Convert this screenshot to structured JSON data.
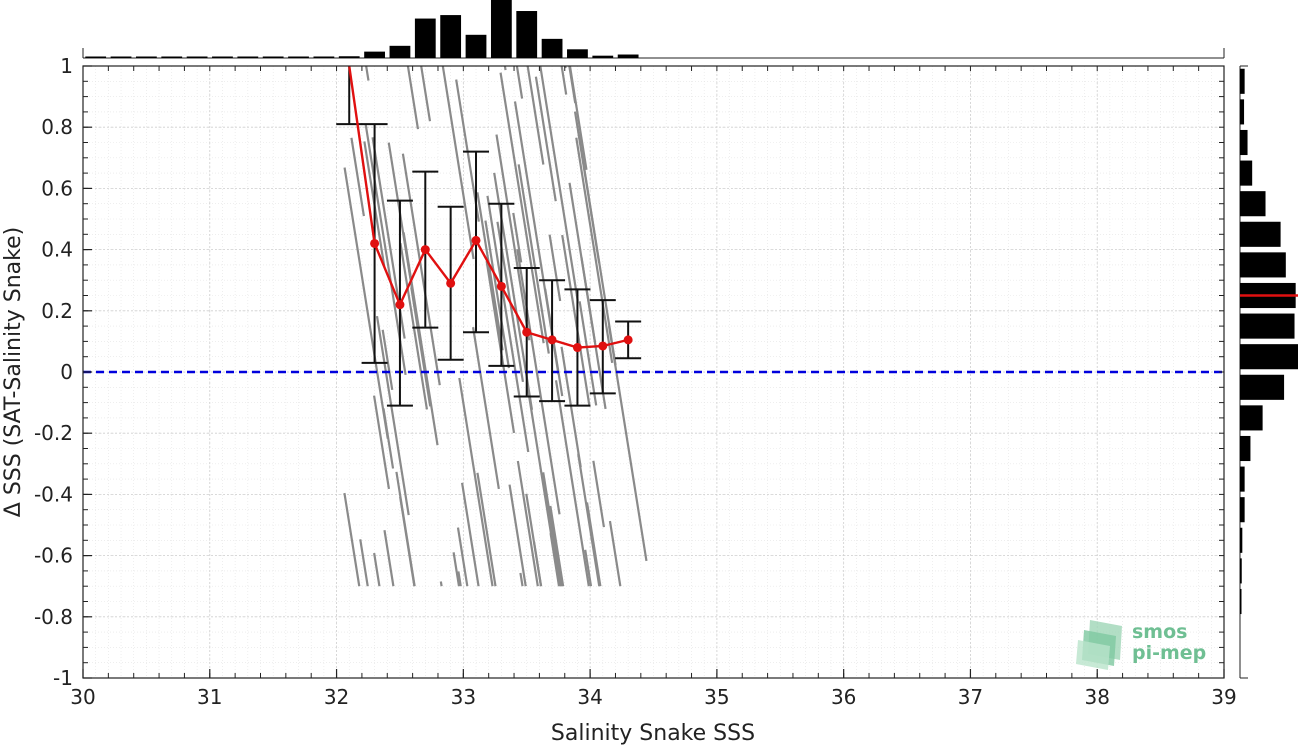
{
  "chart_data": {
    "type": "scatter",
    "xlabel": "Salinity Snake SSS",
    "ylabel": "Δ SSS (SAT-Salinity Snake)",
    "xlim": [
      30,
      39
    ],
    "ylim": [
      -1,
      1
    ],
    "x_ticks": [
      30,
      31,
      32,
      33,
      34,
      35,
      36,
      37,
      38,
      39
    ],
    "y_ticks": [
      -1,
      -0.8,
      -0.6,
      -0.4,
      -0.2,
      0,
      0.2,
      0.4,
      0.6,
      0.8,
      1
    ],
    "y_tick_labels": [
      "-1",
      "-0.8",
      "-0.6",
      "-0.4",
      "-0.2",
      "0",
      "0.2",
      "0.4",
      "0.6",
      "0.8",
      "1"
    ],
    "grid": true,
    "zero_line": {
      "y": 0,
      "color": "#0000dd",
      "style": "dashed"
    },
    "scatter_trace_color": "#808080",
    "mean_series": {
      "color": "#e01010",
      "x": [
        32.1,
        32.3,
        32.5,
        32.7,
        32.9,
        33.1,
        33.3,
        33.5,
        33.7,
        33.9,
        34.1,
        34.3
      ],
      "y": [
        1.0,
        0.42,
        0.22,
        0.4,
        0.29,
        0.43,
        0.28,
        0.13,
        0.105,
        0.08,
        0.085,
        0.105
      ]
    },
    "error_bars": [
      {
        "x": 32.1,
        "low": 0.81,
        "high": 1.0
      },
      {
        "x": 32.3,
        "low": 0.03,
        "high": 0.81
      },
      {
        "x": 32.5,
        "low": -0.11,
        "high": 0.56
      },
      {
        "x": 32.7,
        "low": 0.145,
        "high": 0.655
      },
      {
        "x": 32.9,
        "low": 0.04,
        "high": 0.54
      },
      {
        "x": 33.1,
        "low": 0.13,
        "high": 0.72
      },
      {
        "x": 33.3,
        "low": 0.02,
        "high": 0.55
      },
      {
        "x": 33.5,
        "low": -0.08,
        "high": 0.34
      },
      {
        "x": 33.7,
        "low": -0.095,
        "high": 0.3
      },
      {
        "x": 33.9,
        "low": -0.11,
        "high": 0.27
      },
      {
        "x": 34.1,
        "low": -0.07,
        "high": 0.235
      },
      {
        "x": 34.3,
        "low": 0.045,
        "high": 0.165
      }
    ],
    "top_histogram": {
      "bins": [
        30.1,
        30.3,
        30.5,
        30.7,
        30.9,
        31.1,
        31.3,
        31.5,
        31.7,
        31.9,
        32.1,
        32.3,
        32.5,
        32.7,
        32.9,
        33.1,
        33.3,
        33.5,
        33.7,
        33.9,
        34.1,
        34.3
      ],
      "counts": [
        0.01,
        0.01,
        0.01,
        0.01,
        0.01,
        0.01,
        0.01,
        0.01,
        0.01,
        0.01,
        0.03,
        0.11,
        0.21,
        0.68,
        0.74,
        0.4,
        1.0,
        0.81,
        0.33,
        0.15,
        0.04,
        0.06
      ]
    },
    "right_histogram": {
      "bins": [
        0.95,
        0.85,
        0.75,
        0.65,
        0.55,
        0.45,
        0.35,
        0.25,
        0.15,
        0.05,
        -0.05,
        -0.15,
        -0.25,
        -0.35,
        -0.45,
        -0.55,
        -0.65,
        -0.75
      ],
      "counts": [
        0.08,
        0.07,
        0.13,
        0.21,
        0.44,
        0.7,
        0.79,
        0.96,
        0.94,
        1.0,
        0.76,
        0.39,
        0.18,
        0.08,
        0.08,
        0.04,
        0.03,
        0.02
      ],
      "mean_marker": 0.25,
      "mean_marker_color": "#e01010"
    },
    "logo": {
      "line1": "smos",
      "line2": "pi-mep",
      "color": "#6fbf93"
    }
  }
}
